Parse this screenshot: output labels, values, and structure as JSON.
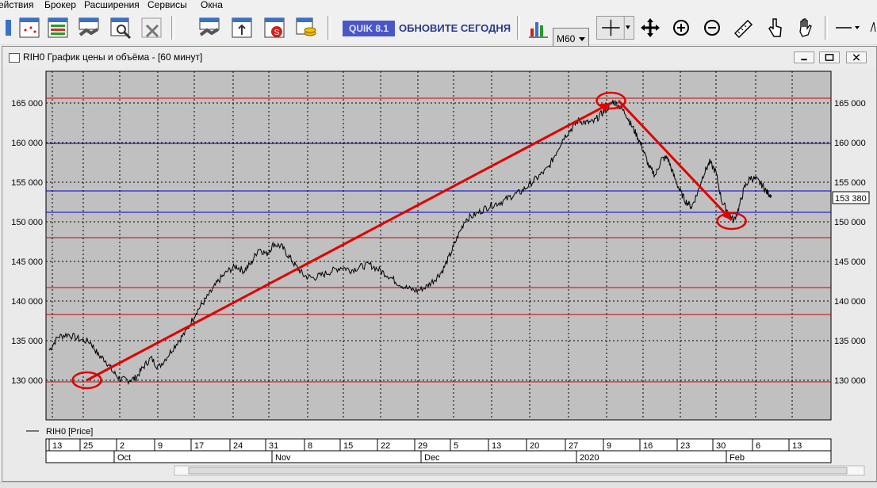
{
  "menu": [
    "ействия",
    "Брокер",
    "Расширения",
    "Сервисы",
    "Окна"
  ],
  "toolbar": {
    "quik_label": "QUIK 8.1",
    "update_label": "ОБНОВИТЕ СЕГОДНЯ",
    "interval": "M60",
    "icons": [
      "chart-new-icon",
      "table-icon",
      "handshake-icon",
      "tools-icon",
      "delete-icon",
      "deal-icon",
      "orders-icon",
      "stop-order-icon",
      "coins-icon",
      "bar-chart-icon",
      "crosshair-icon",
      "move-icon",
      "zoom-in-icon",
      "zoom-out-icon",
      "ruler-icon",
      "hand-pointer-icon",
      "hand-icon",
      "line-icon"
    ]
  },
  "window": {
    "title": "RIH0 График цены и объёма - [60 минут]"
  },
  "legend": "RIH0 [Price]",
  "price_label": "153 380",
  "chart_data": {
    "type": "line",
    "series": [
      {
        "name": "RIH0 [Price]"
      }
    ],
    "y_ticks": [
      "130 000",
      "135 000",
      "140 000",
      "145 000",
      "150 000",
      "155 000",
      "160 000",
      "165 000"
    ],
    "y_tick_values": [
      130000,
      135000,
      140000,
      145000,
      150000,
      155000,
      160000,
      165000
    ],
    "ylim": [
      125000,
      169000
    ],
    "x_day_labels": [
      "13",
      "25",
      "2",
      "9",
      "17",
      "24",
      "31",
      "8",
      "15",
      "22",
      "29",
      "5",
      "13",
      "20",
      "27",
      "9",
      "16",
      "23",
      "30",
      "6",
      "13"
    ],
    "x_month_labels": [
      "Oct",
      "Nov",
      "Dec",
      "2020",
      "Feb"
    ],
    "horizontal_lines": [
      {
        "value": 165600,
        "color": "#cc0000"
      },
      {
        "value": 159900,
        "color": "#0000cc"
      },
      {
        "value": 153900,
        "color": "#0000cc"
      },
      {
        "value": 151200,
        "color": "#0000cc"
      },
      {
        "value": 148000,
        "color": "#cc0000"
      },
      {
        "value": 141700,
        "color": "#cc0000"
      },
      {
        "value": 138300,
        "color": "#cc0000"
      },
      {
        "value": 129800,
        "color": "#cc0000"
      }
    ],
    "price_path": [
      [
        0,
        133800
      ],
      [
        0.012,
        135500
      ],
      [
        0.025,
        135800
      ],
      [
        0.04,
        135200
      ],
      [
        0.055,
        134800
      ],
      [
        0.065,
        133200
      ],
      [
        0.075,
        132500
      ],
      [
        0.085,
        131000
      ],
      [
        0.095,
        130100
      ],
      [
        0.105,
        130000
      ],
      [
        0.115,
        130300
      ],
      [
        0.125,
        131700
      ],
      [
        0.135,
        132800
      ],
      [
        0.145,
        131600
      ],
      [
        0.158,
        133200
      ],
      [
        0.17,
        134800
      ],
      [
        0.182,
        136200
      ],
      [
        0.195,
        138600
      ],
      [
        0.205,
        139900
      ],
      [
        0.215,
        141200
      ],
      [
        0.225,
        142600
      ],
      [
        0.237,
        143800
      ],
      [
        0.248,
        144400
      ],
      [
        0.258,
        143800
      ],
      [
        0.268,
        144800
      ],
      [
        0.278,
        146700
      ],
      [
        0.288,
        145900
      ],
      [
        0.298,
        147200
      ],
      [
        0.308,
        146900
      ],
      [
        0.318,
        145600
      ],
      [
        0.328,
        144300
      ],
      [
        0.338,
        143200
      ],
      [
        0.35,
        142900
      ],
      [
        0.362,
        143300
      ],
      [
        0.375,
        143800
      ],
      [
        0.388,
        144300
      ],
      [
        0.4,
        143900
      ],
      [
        0.412,
        144300
      ],
      [
        0.425,
        144600
      ],
      [
        0.438,
        143900
      ],
      [
        0.45,
        143200
      ],
      [
        0.462,
        142300
      ],
      [
        0.475,
        141600
      ],
      [
        0.488,
        141300
      ],
      [
        0.5,
        141800
      ],
      [
        0.512,
        142800
      ],
      [
        0.522,
        143900
      ],
      [
        0.532,
        145900
      ],
      [
        0.542,
        148200
      ],
      [
        0.552,
        150300
      ],
      [
        0.565,
        150900
      ],
      [
        0.578,
        151700
      ],
      [
        0.59,
        152200
      ],
      [
        0.602,
        152600
      ],
      [
        0.614,
        153300
      ],
      [
        0.626,
        153800
      ],
      [
        0.638,
        154800
      ],
      [
        0.65,
        155800
      ],
      [
        0.662,
        156800
      ],
      [
        0.672,
        158700
      ],
      [
        0.682,
        160600
      ],
      [
        0.692,
        161700
      ],
      [
        0.702,
        162800
      ],
      [
        0.712,
        162500
      ],
      [
        0.722,
        162600
      ],
      [
        0.732,
        163600
      ],
      [
        0.74,
        164300
      ],
      [
        0.748,
        165200
      ],
      [
        0.756,
        164600
      ],
      [
        0.765,
        163600
      ],
      [
        0.772,
        162200
      ],
      [
        0.78,
        160800
      ],
      [
        0.788,
        159000
      ],
      [
        0.796,
        156800
      ],
      [
        0.804,
        155900
      ],
      [
        0.812,
        157900
      ],
      [
        0.82,
        158100
      ],
      [
        0.828,
        155900
      ],
      [
        0.836,
        154000
      ],
      [
        0.844,
        152600
      ],
      [
        0.852,
        151900
      ],
      [
        0.86,
        153700
      ],
      [
        0.868,
        156100
      ],
      [
        0.876,
        157500
      ],
      [
        0.884,
        156300
      ],
      [
        0.892,
        152600
      ],
      [
        0.9,
        151300
      ],
      [
        0.908,
        150100
      ],
      [
        0.915,
        151900
      ],
      [
        0.922,
        154300
      ],
      [
        0.93,
        155600
      ],
      [
        0.938,
        155300
      ],
      [
        0.946,
        154600
      ],
      [
        0.952,
        153700
      ],
      [
        0.958,
        153380
      ]
    ],
    "annotation_arrows": [
      {
        "from": [
          0.05,
          130000
        ],
        "to": [
          0.745,
          165000
        ]
      },
      {
        "from": [
          0.755,
          165300
        ],
        "to": [
          0.905,
          150200
        ]
      }
    ],
    "annotation_circles": [
      {
        "x": 0.05,
        "y": 130000
      },
      {
        "x": 0.745,
        "y": 165300
      },
      {
        "x": 0.905,
        "y": 150100
      }
    ]
  }
}
